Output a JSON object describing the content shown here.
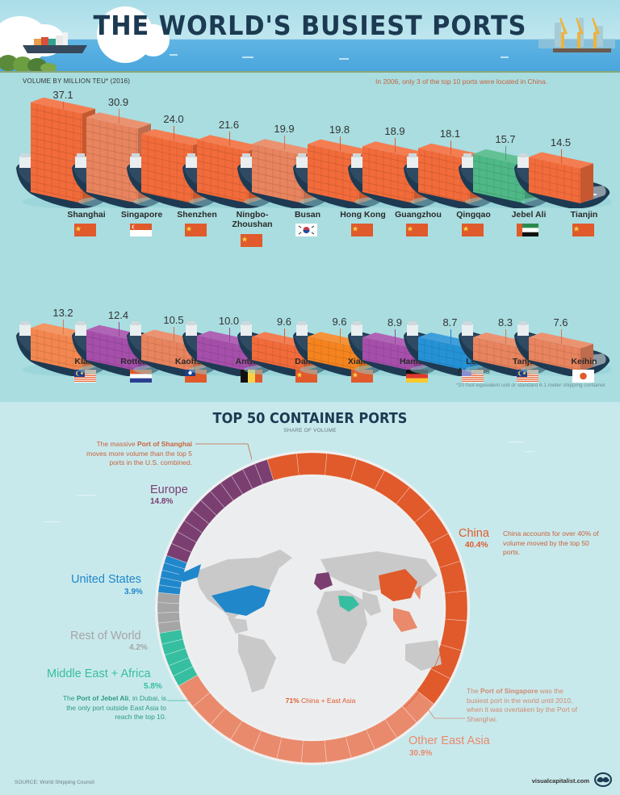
{
  "header": {
    "title": "THE WORLD'S BUSIEST PORTS"
  },
  "top_chart": {
    "subtitle": "VOLUME BY MILLION TEU* (2016)",
    "note": "In 2006, only 3 of the top 10 ports were located in China.",
    "footnote": "*20 foot equivalent unit or standard 6.1 meter shipping container",
    "rows": [
      [
        {
          "name": "Shanghai",
          "value": "37.1",
          "country": "china",
          "color": "#f26b3a"
        },
        {
          "name": "Singapore",
          "value": "30.9",
          "country": "singapore",
          "color": "#e8845e"
        },
        {
          "name": "Shenzhen",
          "value": "24.0",
          "country": "china",
          "color": "#f26b3a"
        },
        {
          "name": "Ningbo-\nZhoushan",
          "value": "21.6",
          "country": "china",
          "color": "#f26b3a"
        },
        {
          "name": "Busan",
          "value": "19.9",
          "country": "south-korea",
          "color": "#e8845e"
        },
        {
          "name": "Hong Kong",
          "value": "19.8",
          "country": "china",
          "color": "#f26b3a"
        },
        {
          "name": "Guangzhou",
          "value": "18.9",
          "country": "china",
          "color": "#f26b3a"
        },
        {
          "name": "Qingqao",
          "value": "18.1",
          "country": "china",
          "color": "#f26b3a"
        },
        {
          "name": "Jebel Ali",
          "value": "15.7",
          "country": "uae",
          "color": "#4fb887"
        },
        {
          "name": "Tianjin",
          "value": "14.5",
          "country": "china",
          "color": "#f26b3a"
        }
      ],
      [
        {
          "name": "Klang",
          "value": "13.2",
          "country": "malaysia",
          "color": "#f3874f"
        },
        {
          "name": "Rotterdam",
          "value": "12.4",
          "country": "netherlands",
          "color": "#a54fab"
        },
        {
          "name": "Kaohsiung",
          "value": "10.5",
          "country": "taiwan",
          "color": "#e8845e"
        },
        {
          "name": "Antwerp",
          "value": "10.0",
          "country": "belgium",
          "color": "#a54fab"
        },
        {
          "name": "Dalian",
          "value": "9.6",
          "country": "china",
          "color": "#f26b3a"
        },
        {
          "name": "Xiamen",
          "value": "9.6",
          "country": "china",
          "color": "#f5841f"
        },
        {
          "name": "Hamburg",
          "value": "8.9",
          "country": "germany",
          "color": "#a54fab"
        },
        {
          "name": "Los Angeles",
          "value": "8.7",
          "country": "usa",
          "color": "#2592d6"
        },
        {
          "name": "Tanjung",
          "value": "8.3",
          "country": "malaysia",
          "color": "#e8845e"
        },
        {
          "name": "Keihin",
          "value": "7.6",
          "country": "japan",
          "color": "#e8845e"
        }
      ]
    ]
  },
  "bottom_chart": {
    "title": "TOP 50 CONTAINER PORTS",
    "subtitle": "SHARE OF VOLUME",
    "regions": [
      {
        "label": "China",
        "pct": "40.4%",
        "color": "#e05a2b"
      },
      {
        "label": "Other East Asia",
        "pct": "30.9%",
        "color": "#e98a6c"
      },
      {
        "label": "Middle East + Africa",
        "pct": "5.8%",
        "color": "#36bea0"
      },
      {
        "label": "Rest of World",
        "pct": "4.2%",
        "color": "#a5a5a5"
      },
      {
        "label": "United States",
        "pct": "3.9%",
        "color": "#2087cb"
      },
      {
        "label": "Europe",
        "pct": "14.8%",
        "color": "#7a3f70"
      }
    ],
    "center_label_bold": "71%",
    "center_label": " China + East Asia",
    "annotations": {
      "shanghai": {
        "pre": "The massive ",
        "bold": "Port of Shanghai",
        "post": " moves more volume than the top 5 ports in the U.S. combined."
      },
      "china": "China accounts for over 40% of volume moved by the top 50 ports.",
      "singapore": {
        "pre": "The ",
        "bold": "Port of Singapore",
        "post": " was the busiest port in the world until 2010, when it was overtaken by the Port of Shanghai."
      },
      "jebel": {
        "pre": "The ",
        "bold": "Port of Jebel Ali",
        "post": ", in Dubai, is the only port outside East Asia to reach the top 10."
      }
    }
  },
  "chart_data": [
    {
      "type": "bar",
      "title": "The World's Busiest Ports",
      "ylabel": "Volume by million TEU (2016)",
      "categories": [
        "Shanghai",
        "Singapore",
        "Shenzhen",
        "Ningbo-Zhoushan",
        "Busan",
        "Hong Kong",
        "Guangzhou",
        "Qingqao",
        "Jebel Ali",
        "Tianjin",
        "Klang",
        "Rotterdam",
        "Kaohsiung",
        "Antwerp",
        "Dalian",
        "Xiamen",
        "Hamburg",
        "Los Angeles",
        "Tanjung",
        "Keihin"
      ],
      "values": [
        37.1,
        30.9,
        24.0,
        21.6,
        19.9,
        19.8,
        18.9,
        18.1,
        15.7,
        14.5,
        13.2,
        12.4,
        10.5,
        10.0,
        9.6,
        9.6,
        8.9,
        8.7,
        8.3,
        7.6
      ]
    },
    {
      "type": "pie",
      "title": "Top 50 Container Ports",
      "subtitle": "Share of Volume",
      "categories": [
        "China",
        "Other East Asia",
        "Middle East + Africa",
        "Rest of World",
        "United States",
        "Europe"
      ],
      "values": [
        40.4,
        30.9,
        5.8,
        4.2,
        3.9,
        14.8
      ]
    }
  ],
  "footer": {
    "source": "SOURCE: World Shipping Council",
    "brand": "visualcapitalist.com"
  }
}
